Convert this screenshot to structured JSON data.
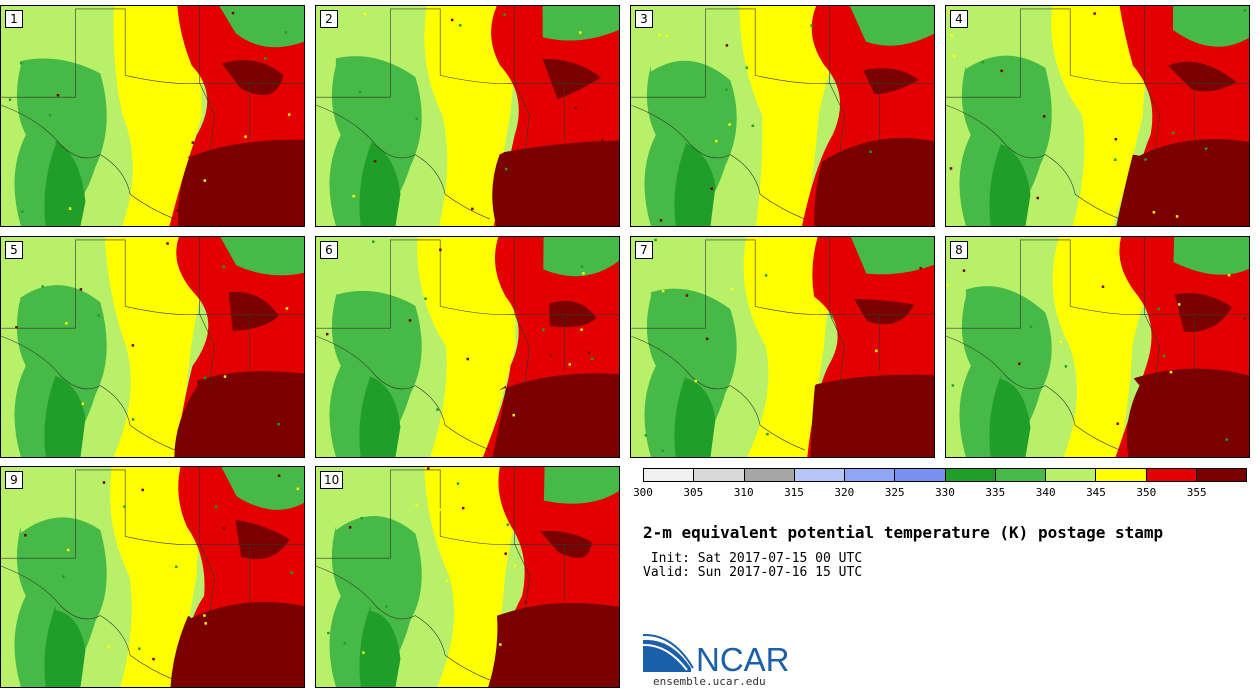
{
  "stamps": [
    {
      "label": "1"
    },
    {
      "label": "2"
    },
    {
      "label": "3"
    },
    {
      "label": "4"
    },
    {
      "label": "5"
    },
    {
      "label": "6"
    },
    {
      "label": "7"
    },
    {
      "label": "8"
    },
    {
      "label": "9"
    },
    {
      "label": "10"
    }
  ],
  "colorbar": {
    "colors": [
      "#f0f0f0",
      "#d9d9d9",
      "#a6a6a6",
      "#b5c6f7",
      "#8ea6f5",
      "#7890ef",
      "#1f9e2a",
      "#46b946",
      "#b8f06a",
      "#ffff00",
      "#e30000",
      "#7a0000"
    ],
    "ticks": [
      "300",
      "305",
      "310",
      "315",
      "320",
      "325",
      "330",
      "335",
      "340",
      "345",
      "350",
      "355"
    ]
  },
  "title": "2-m equivalent potential temperature (K) postage stamp",
  "init": " Init: Sat 2017-07-15 00 UTC",
  "valid": "Valid: Sun 2017-07-16 15 UTC",
  "logo": {
    "wordmark": "NCAR",
    "url": "ensemble.ucar.edu",
    "brand_color": "#1a5fa8"
  },
  "map_colors": {
    "light_green": "#b8f06a",
    "mid_green": "#46b946",
    "dark_green": "#1f9e2a",
    "yellow": "#ffff00",
    "red": "#e30000",
    "dark_red": "#7a0000"
  }
}
